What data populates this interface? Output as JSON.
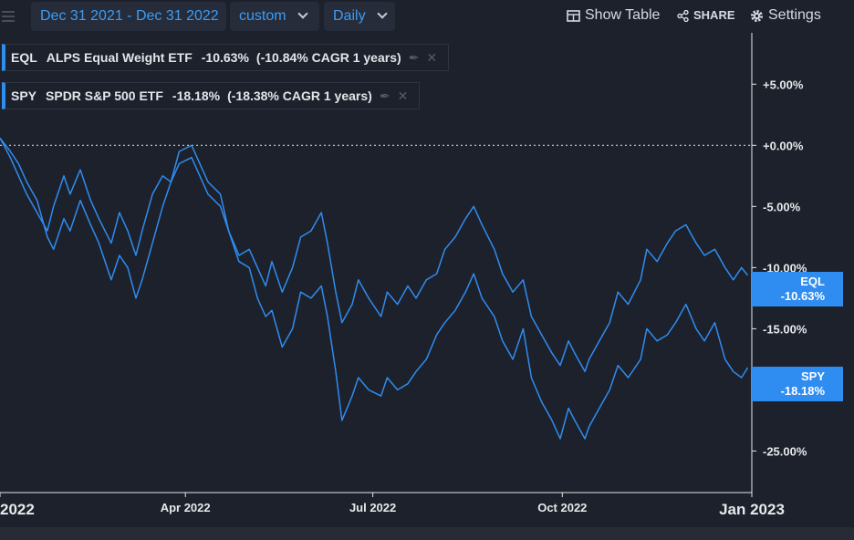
{
  "toolbar": {
    "date_range": "Dec 31 2021 - Dec 31 2022",
    "range_type": "custom",
    "interval": "Daily",
    "show_table": "Show Table",
    "share": "SHARE",
    "settings": "Settings"
  },
  "legend": [
    {
      "ticker": "EQL",
      "name": "ALPS Equal Weight ETF",
      "change": "-10.63%",
      "cagr": "(-10.84% CAGR 1 years)"
    },
    {
      "ticker": "SPY",
      "name": "SPDR S&P 500 ETF",
      "change": "-18.18%",
      "cagr": "(-18.38% CAGR 1 years)"
    }
  ],
  "price_tags": {
    "eql": {
      "ticker": "EQL",
      "value": "-10.63%"
    },
    "spy": {
      "ticker": "SPY",
      "value": "-18.18%"
    }
  },
  "colors": {
    "line": "#2f8cf0",
    "background": "#1d212b",
    "axis": "#e8e8e8",
    "accent": "#3d9cf5"
  },
  "chart_data": {
    "type": "line",
    "title": "",
    "xlabel": "",
    "ylabel": "",
    "x_ticks": [
      {
        "label": "2022",
        "date": "2022-01-01"
      },
      {
        "label": "Apr 2022",
        "date": "2022-04-01"
      },
      {
        "label": "Jul 2022",
        "date": "2022-07-01"
      },
      {
        "label": "Oct 2022",
        "date": "2022-10-01"
      },
      {
        "label": "Jan 2023",
        "date": "2023-01-01"
      }
    ],
    "y_ticks": [
      5,
      0,
      -5,
      -10,
      -15,
      -20,
      -25
    ],
    "y_tick_labels": [
      "+5.00%",
      "+0.00%",
      "-5.00%",
      "-10.00%",
      "-15.00%",
      "-20.00%",
      "-25.00%"
    ],
    "xlim": [
      "2022-01-01",
      "2023-01-01"
    ],
    "ylim": [
      -28.4,
      9.2
    ],
    "grid": false,
    "zero_line": true,
    "series": [
      {
        "name": "EQL",
        "points": [
          [
            "2022-01-01",
            0.6
          ],
          [
            "2022-01-06",
            -1.0
          ],
          [
            "2022-01-10",
            -2.5
          ],
          [
            "2022-01-14",
            -4.0
          ],
          [
            "2022-01-19",
            -5.5
          ],
          [
            "2022-01-24",
            -7.0
          ],
          [
            "2022-01-27",
            -5.0
          ],
          [
            "2022-02-01",
            -2.5
          ],
          [
            "2022-02-04",
            -4.0
          ],
          [
            "2022-02-09",
            -2.0
          ],
          [
            "2022-02-14",
            -4.5
          ],
          [
            "2022-02-18",
            -6.0
          ],
          [
            "2022-02-24",
            -8.0
          ],
          [
            "2022-02-28",
            -5.5
          ],
          [
            "2022-03-04",
            -7.0
          ],
          [
            "2022-03-08",
            -9.0
          ],
          [
            "2022-03-11",
            -7.0
          ],
          [
            "2022-03-16",
            -4.0
          ],
          [
            "2022-03-21",
            -2.5
          ],
          [
            "2022-03-25",
            -3.0
          ],
          [
            "2022-03-29",
            -1.5
          ],
          [
            "2022-04-04",
            -1.0
          ],
          [
            "2022-04-08",
            -2.5
          ],
          [
            "2022-04-12",
            -4.0
          ],
          [
            "2022-04-18",
            -5.0
          ],
          [
            "2022-04-22",
            -7.0
          ],
          [
            "2022-04-27",
            -9.0
          ],
          [
            "2022-05-02",
            -8.5
          ],
          [
            "2022-05-06",
            -10.0
          ],
          [
            "2022-05-10",
            -11.5
          ],
          [
            "2022-05-13",
            -9.5
          ],
          [
            "2022-05-18",
            -12.0
          ],
          [
            "2022-05-23",
            -10.0
          ],
          [
            "2022-05-27",
            -7.5
          ],
          [
            "2022-06-01",
            -7.0
          ],
          [
            "2022-06-06",
            -5.5
          ],
          [
            "2022-06-09",
            -8.0
          ],
          [
            "2022-06-13",
            -12.0
          ],
          [
            "2022-06-16",
            -14.5
          ],
          [
            "2022-06-21",
            -13.0
          ],
          [
            "2022-06-24",
            -11.0
          ],
          [
            "2022-06-29",
            -12.5
          ],
          [
            "2022-07-05",
            -14.0
          ],
          [
            "2022-07-08",
            -12.0
          ],
          [
            "2022-07-13",
            -13.0
          ],
          [
            "2022-07-18",
            -11.5
          ],
          [
            "2022-07-22",
            -12.5
          ],
          [
            "2022-07-27",
            -11.0
          ],
          [
            "2022-08-01",
            -10.5
          ],
          [
            "2022-08-05",
            -8.5
          ],
          [
            "2022-08-10",
            -7.5
          ],
          [
            "2022-08-15",
            -6.0
          ],
          [
            "2022-08-19",
            -5.0
          ],
          [
            "2022-08-23",
            -6.5
          ],
          [
            "2022-08-29",
            -8.5
          ],
          [
            "2022-09-02",
            -10.5
          ],
          [
            "2022-09-07",
            -12.0
          ],
          [
            "2022-09-12",
            -11.0
          ],
          [
            "2022-09-16",
            -14.0
          ],
          [
            "2022-09-21",
            -15.5
          ],
          [
            "2022-09-26",
            -17.0
          ],
          [
            "2022-09-30",
            -18.0
          ],
          [
            "2022-10-04",
            -16.0
          ],
          [
            "2022-10-07",
            -17.0
          ],
          [
            "2022-10-12",
            -18.5
          ],
          [
            "2022-10-14",
            -17.5
          ],
          [
            "2022-10-19",
            -16.0
          ],
          [
            "2022-10-24",
            -14.5
          ],
          [
            "2022-10-28",
            -12.0
          ],
          [
            "2022-11-02",
            -13.0
          ],
          [
            "2022-11-08",
            -11.0
          ],
          [
            "2022-11-11",
            -8.5
          ],
          [
            "2022-11-16",
            -9.5
          ],
          [
            "2022-11-21",
            -8.0
          ],
          [
            "2022-11-25",
            -7.0
          ],
          [
            "2022-11-30",
            -6.5
          ],
          [
            "2022-12-05",
            -8.0
          ],
          [
            "2022-12-09",
            -9.0
          ],
          [
            "2022-12-14",
            -8.5
          ],
          [
            "2022-12-19",
            -10.0
          ],
          [
            "2022-12-23",
            -11.0
          ],
          [
            "2022-12-27",
            -10.0
          ],
          [
            "2022-12-30",
            -10.63
          ]
        ]
      },
      {
        "name": "SPY",
        "points": [
          [
            "2022-01-01",
            0.6
          ],
          [
            "2022-01-06",
            -0.5
          ],
          [
            "2022-01-10",
            -1.5
          ],
          [
            "2022-01-14",
            -3.0
          ],
          [
            "2022-01-19",
            -4.5
          ],
          [
            "2022-01-24",
            -7.5
          ],
          [
            "2022-01-27",
            -8.5
          ],
          [
            "2022-02-01",
            -6.0
          ],
          [
            "2022-02-04",
            -7.0
          ],
          [
            "2022-02-09",
            -4.5
          ],
          [
            "2022-02-14",
            -6.5
          ],
          [
            "2022-02-18",
            -8.0
          ],
          [
            "2022-02-24",
            -11.0
          ],
          [
            "2022-02-28",
            -9.0
          ],
          [
            "2022-03-04",
            -10.0
          ],
          [
            "2022-03-08",
            -12.5
          ],
          [
            "2022-03-11",
            -11.0
          ],
          [
            "2022-03-16",
            -8.0
          ],
          [
            "2022-03-21",
            -5.0
          ],
          [
            "2022-03-25",
            -3.0
          ],
          [
            "2022-03-29",
            -0.5
          ],
          [
            "2022-04-04",
            0.0
          ],
          [
            "2022-04-08",
            -1.5
          ],
          [
            "2022-04-12",
            -3.0
          ],
          [
            "2022-04-18",
            -4.0
          ],
          [
            "2022-04-22",
            -7.0
          ],
          [
            "2022-04-27",
            -9.5
          ],
          [
            "2022-05-02",
            -10.0
          ],
          [
            "2022-05-06",
            -12.5
          ],
          [
            "2022-05-10",
            -14.0
          ],
          [
            "2022-05-13",
            -13.5
          ],
          [
            "2022-05-18",
            -16.5
          ],
          [
            "2022-05-23",
            -15.0
          ],
          [
            "2022-05-27",
            -12.0
          ],
          [
            "2022-06-01",
            -12.5
          ],
          [
            "2022-06-06",
            -11.5
          ],
          [
            "2022-06-09",
            -14.0
          ],
          [
            "2022-06-13",
            -18.5
          ],
          [
            "2022-06-16",
            -22.5
          ],
          [
            "2022-06-21",
            -20.5
          ],
          [
            "2022-06-24",
            -19.0
          ],
          [
            "2022-06-29",
            -20.0
          ],
          [
            "2022-07-05",
            -20.5
          ],
          [
            "2022-07-08",
            -19.0
          ],
          [
            "2022-07-13",
            -20.0
          ],
          [
            "2022-07-18",
            -19.5
          ],
          [
            "2022-07-22",
            -18.5
          ],
          [
            "2022-07-27",
            -17.5
          ],
          [
            "2022-08-01",
            -15.5
          ],
          [
            "2022-08-05",
            -14.5
          ],
          [
            "2022-08-10",
            -13.5
          ],
          [
            "2022-08-15",
            -12.0
          ],
          [
            "2022-08-19",
            -10.5
          ],
          [
            "2022-08-23",
            -12.5
          ],
          [
            "2022-08-29",
            -14.0
          ],
          [
            "2022-09-02",
            -16.0
          ],
          [
            "2022-09-07",
            -17.5
          ],
          [
            "2022-09-12",
            -15.0
          ],
          [
            "2022-09-16",
            -19.0
          ],
          [
            "2022-09-21",
            -21.0
          ],
          [
            "2022-09-26",
            -22.5
          ],
          [
            "2022-09-30",
            -24.0
          ],
          [
            "2022-10-04",
            -21.5
          ],
          [
            "2022-10-07",
            -22.5
          ],
          [
            "2022-10-12",
            -24.0
          ],
          [
            "2022-10-14",
            -23.0
          ],
          [
            "2022-10-19",
            -21.5
          ],
          [
            "2022-10-24",
            -20.0
          ],
          [
            "2022-10-28",
            -18.0
          ],
          [
            "2022-11-02",
            -19.0
          ],
          [
            "2022-11-08",
            -17.5
          ],
          [
            "2022-11-11",
            -15.0
          ],
          [
            "2022-11-16",
            -16.0
          ],
          [
            "2022-11-21",
            -15.5
          ],
          [
            "2022-11-25",
            -14.5
          ],
          [
            "2022-11-30",
            -13.0
          ],
          [
            "2022-12-05",
            -15.0
          ],
          [
            "2022-12-09",
            -16.0
          ],
          [
            "2022-12-14",
            -14.5
          ],
          [
            "2022-12-19",
            -17.5
          ],
          [
            "2022-12-23",
            -18.5
          ],
          [
            "2022-12-27",
            -19.0
          ],
          [
            "2022-12-30",
            -18.18
          ]
        ]
      }
    ]
  }
}
